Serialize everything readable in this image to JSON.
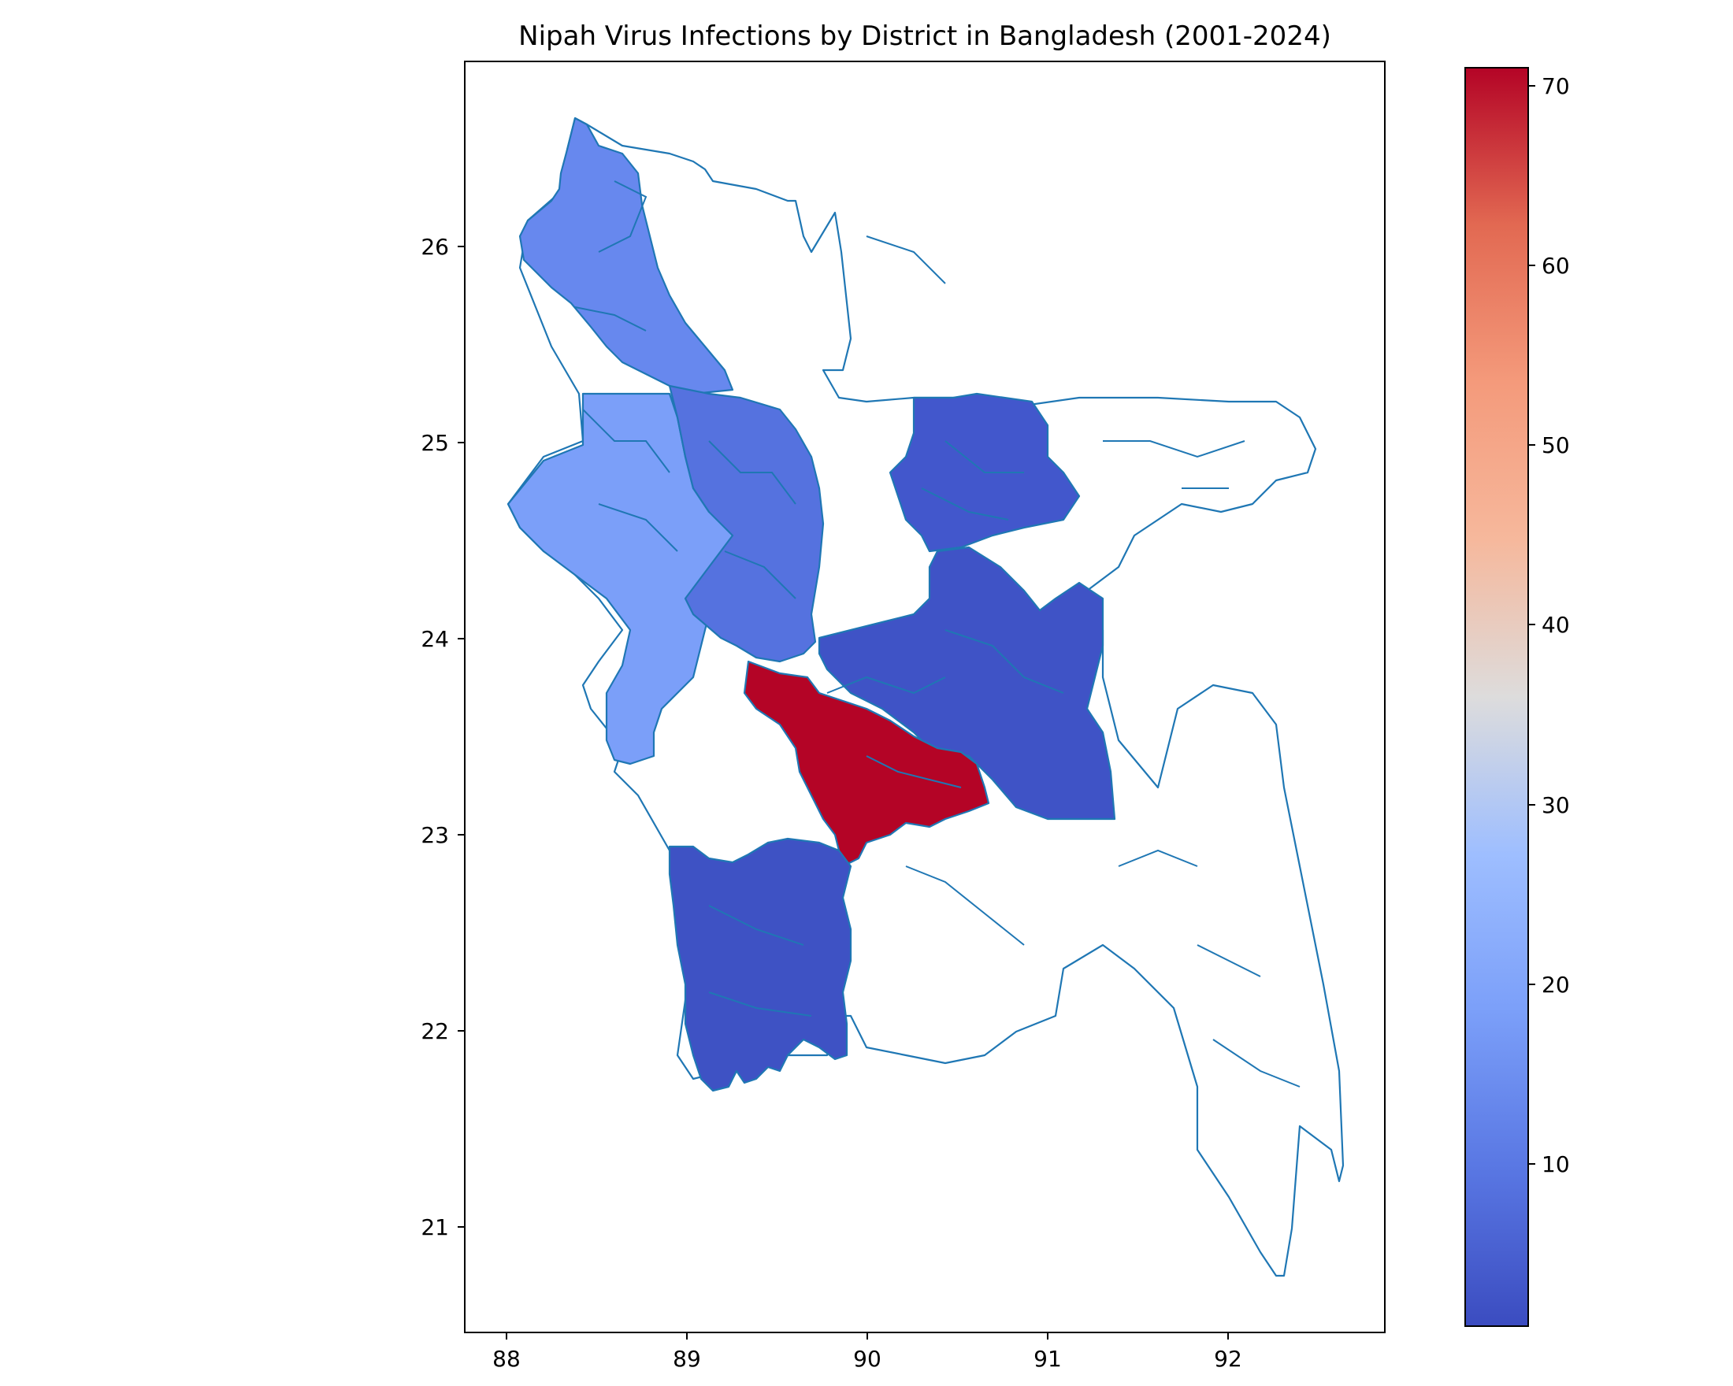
{
  "chart_data": {
    "type": "choropleth-map",
    "title": "Nipah Virus Infections by District in Bangladesh (2001-2024)",
    "xlabel": "",
    "ylabel": "",
    "xlim": [
      87.8,
      92.9
    ],
    "ylim": [
      20.45,
      26.93
    ],
    "x_ticks": [
      "88",
      "89",
      "90",
      "91",
      "92"
    ],
    "y_ticks": [
      "21",
      "22",
      "23",
      "24",
      "25",
      "26"
    ],
    "grid": false,
    "colormap": "coolwarm",
    "colorbar": {
      "min": 1,
      "max": 71,
      "ticks": [
        "10",
        "20",
        "30",
        "40",
        "50",
        "60",
        "70"
      ],
      "placement": "right"
    },
    "regions": [
      {
        "area": "far north-west",
        "value": 8
      },
      {
        "area": "west",
        "value": 15
      },
      {
        "area": "north-central west",
        "value": 4
      },
      {
        "area": "north-central east",
        "value": 2
      },
      {
        "area": "central",
        "value": 2
      },
      {
        "area": "central west",
        "value": 71
      },
      {
        "area": "south-west",
        "value": 2
      },
      {
        "area": "north-east, south-east and south",
        "value": null
      }
    ],
    "colors": {
      "outline": "#1f77b4",
      "no_data": "#ffffff"
    }
  }
}
